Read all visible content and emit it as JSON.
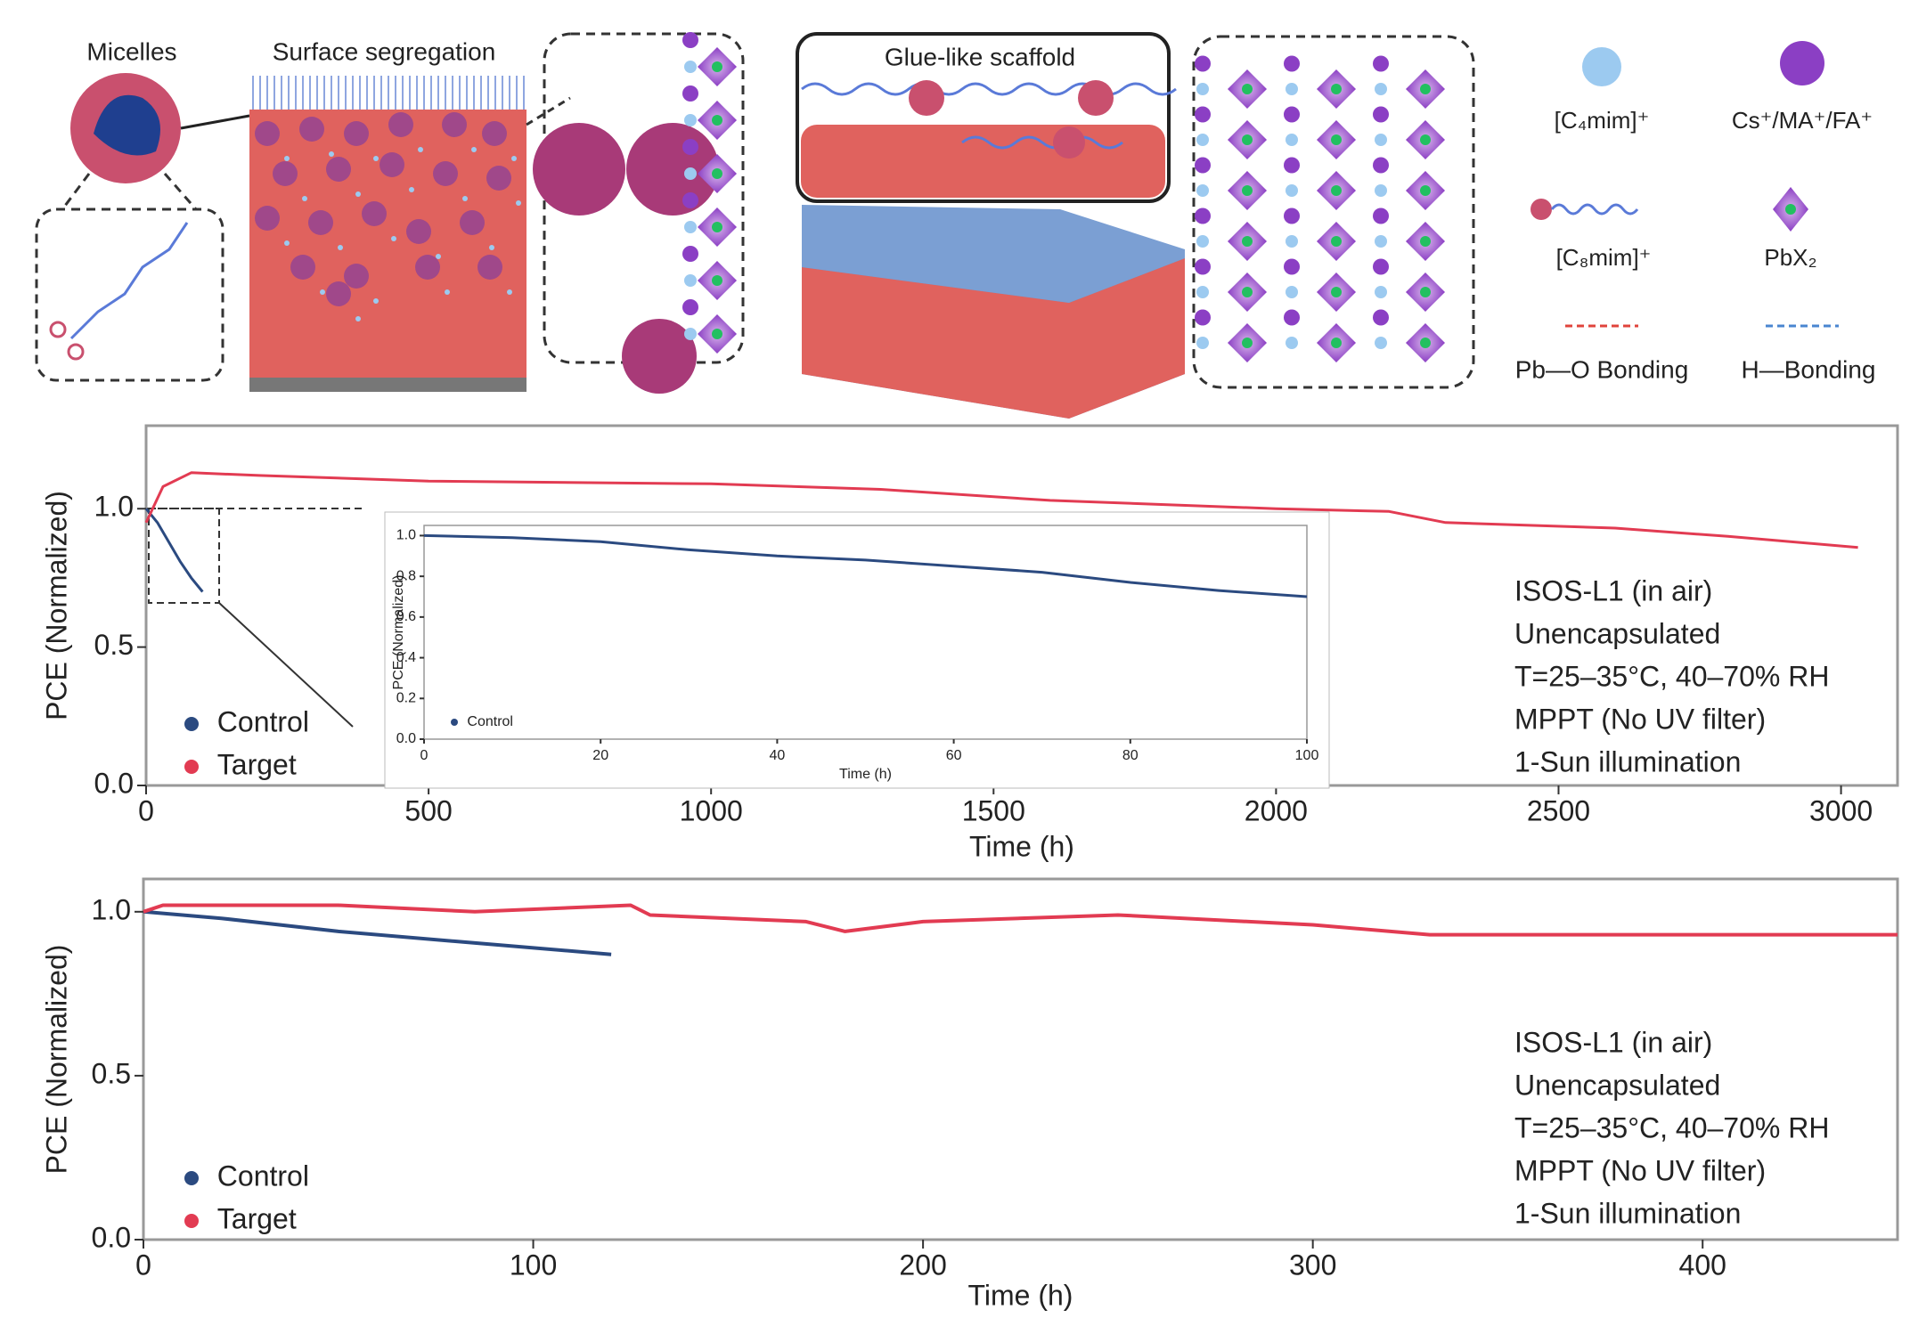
{
  "diagram": {
    "titles": [
      "Micelles",
      "Surface segregation",
      "Glue-like scaffold"
    ],
    "legend": [
      "[C₄mim]⁺",
      "Cs⁺/MA⁺/FA⁺",
      "[C₈mim]⁺",
      "PbX₂",
      "Pb—O Bonding",
      "H—Bonding"
    ]
  },
  "chart_data": [
    {
      "type": "line",
      "x_label": "Time (h)",
      "y_label": "PCE (Normalized)",
      "xlim": [
        0,
        3100
      ],
      "xticks": [
        0,
        500,
        1000,
        1500,
        2000,
        2500,
        3000
      ],
      "ylim": [
        0,
        1.3
      ],
      "yticks": [
        {
          "value": 0,
          "label": "0.0"
        },
        {
          "value": 0.5,
          "label": "0.5"
        },
        {
          "value": 1,
          "label": "1.0"
        }
      ],
      "grid": false,
      "series": [
        {
          "name": "Control",
          "color": "#2b4a80",
          "x": [
            0,
            20,
            40,
            60,
            80,
            100
          ],
          "values": [
            1.0,
            0.95,
            0.88,
            0.81,
            0.75,
            0.7
          ]
        },
        {
          "name": "Target",
          "color": "#e23b52",
          "x": [
            0,
            30,
            80,
            200,
            500,
            1000,
            1300,
            1600,
            2000,
            2200,
            2300,
            2600,
            2800,
            3030
          ],
          "values": [
            0.95,
            1.08,
            1.13,
            1.12,
            1.1,
            1.09,
            1.07,
            1.03,
            1.0,
            0.99,
            0.95,
            0.93,
            0.9,
            0.86
          ]
        }
      ],
      "annotations": [
        "ISOS-L1 (in air)",
        "Unencapsulated",
        "T=25–35°C, 40–70% RH",
        "MPPT (No UV filter)",
        "1-Sun illumination"
      ]
    },
    {
      "type": "line",
      "x_label": "Time (h)",
      "y_label": "PCE (Normalized)",
      "xlim": [
        0,
        100
      ],
      "xticks": [
        0,
        20,
        40,
        60,
        80,
        100
      ],
      "ylim": [
        0,
        1.05
      ],
      "yticks": [
        {
          "value": 0,
          "label": "0.0"
        },
        {
          "value": 0.2,
          "label": "0.2"
        },
        {
          "value": 0.4,
          "label": "0.4"
        },
        {
          "value": 0.6,
          "label": "0.6"
        },
        {
          "value": 0.8,
          "label": "0.8"
        },
        {
          "value": 1,
          "label": "1.0"
        }
      ],
      "grid": false,
      "series": [
        {
          "name": "Control",
          "color": "#2b4a80",
          "x": [
            0,
            10,
            20,
            30,
            40,
            50,
            60,
            70,
            80,
            90,
            100
          ],
          "values": [
            1.0,
            0.99,
            0.97,
            0.93,
            0.9,
            0.88,
            0.85,
            0.82,
            0.77,
            0.73,
            0.7
          ]
        }
      ]
    },
    {
      "type": "line",
      "x_label": "Time (h)",
      "y_label": "PCE (Normalized)",
      "xlim": [
        0,
        450
      ],
      "xticks": [
        0,
        100,
        200,
        300,
        400
      ],
      "ylim": [
        0,
        1.1
      ],
      "yticks": [
        {
          "value": 0,
          "label": "0.0"
        },
        {
          "value": 0.5,
          "label": "0.5"
        },
        {
          "value": 1,
          "label": "1.0"
        }
      ],
      "grid": false,
      "series": [
        {
          "name": "Control",
          "color": "#2b4a80",
          "x": [
            0,
            20,
            50,
            80,
            120
          ],
          "values": [
            1.0,
            0.98,
            0.94,
            0.91,
            0.87
          ]
        },
        {
          "name": "Target",
          "color": "#e23b52",
          "x": [
            0,
            5,
            50,
            85,
            125,
            130,
            170,
            180,
            200,
            250,
            300,
            330,
            400,
            450
          ],
          "values": [
            1.0,
            1.02,
            1.02,
            1.0,
            1.02,
            0.99,
            0.97,
            0.94,
            0.97,
            0.99,
            0.96,
            0.93,
            0.93,
            0.93
          ]
        }
      ],
      "annotations": [
        "ISOS-L1 (in air)",
        "Unencapsulated",
        "T=25–35°C, 40–70% RH",
        "MPPT (No UV filter)",
        "1-Sun illumination"
      ]
    }
  ]
}
